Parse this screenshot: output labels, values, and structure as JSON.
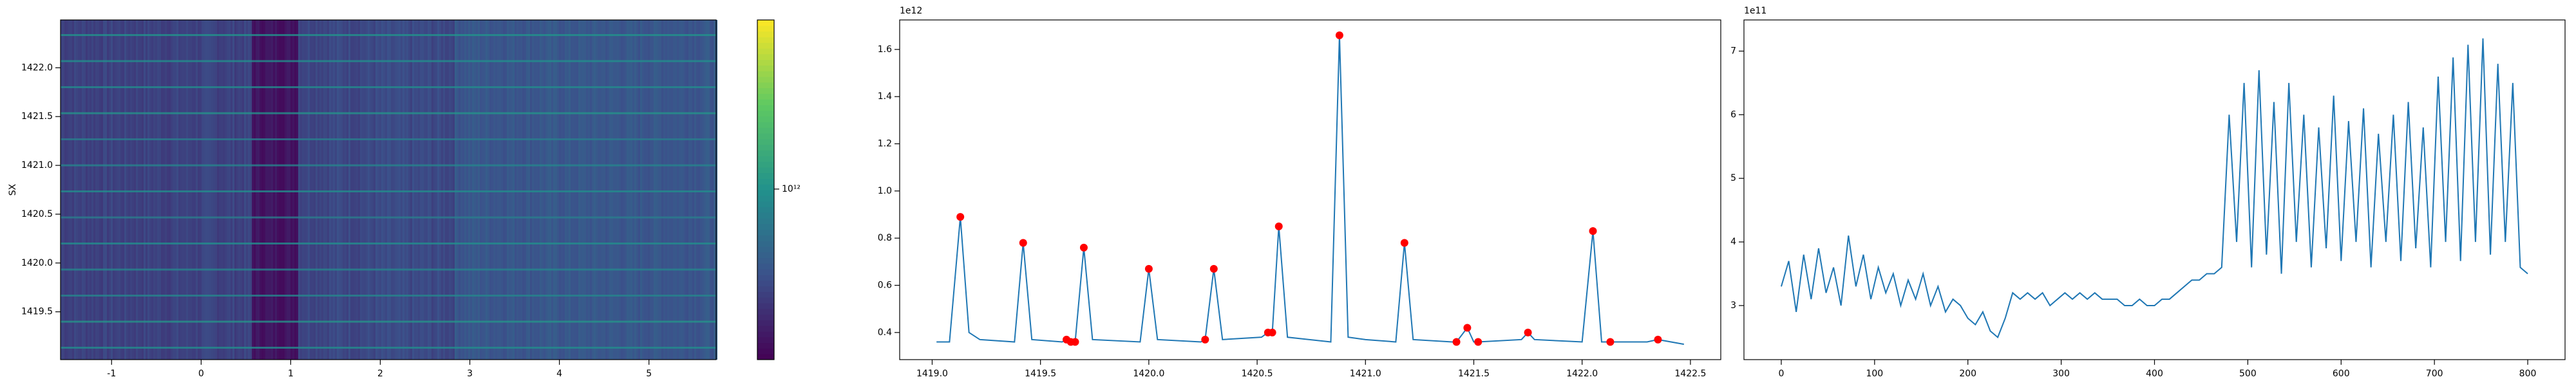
{
  "chart_data": [
    {
      "type": "heatmap",
      "ylabel": "SX",
      "xlim": [
        -1.57,
        5.75
      ],
      "xticks": [
        -1,
        0,
        1,
        2,
        3,
        4,
        5
      ],
      "ylim": [
        1419.01,
        1422.49
      ],
      "yticks": [
        1419.5,
        {
          "value": 1420,
          "label": "1420.0"
        },
        1420.5,
        {
          "value": 1421,
          "label": "1421.0"
        },
        1421.5,
        {
          "value": 1422,
          "label": "1422.0"
        }
      ],
      "colorbar": {
        "scale": "log",
        "lim": [
          300000000000,
          3300000000000
        ],
        "ticks": [
          {
            "value": 1000000000000,
            "label": "10¹²"
          }
        ]
      }
    },
    {
      "type": "line",
      "offset_label": "1e12",
      "xlim": [
        1418.85,
        1422.64
      ],
      "xticks": [
        {
          "value": 1419,
          "label": "1419.0"
        },
        1419.5,
        {
          "value": 1420,
          "label": "1420.0"
        },
        1420.5,
        {
          "value": 1421,
          "label": "1421.0"
        },
        1421.5,
        {
          "value": 1422,
          "label": "1422.0"
        },
        1422.5
      ],
      "ylim": [
        0.285,
        1.725
      ],
      "yticks": [
        0.4,
        0.6,
        0.8,
        {
          "value": 1,
          "label": "1.0"
        },
        1.2,
        1.4,
        1.6
      ],
      "series": [
        {
          "mode": "line",
          "color": "#1f77b4",
          "x": [
            1419.02,
            1419.08,
            1419.13,
            1419.17,
            1419.22,
            1419.38,
            1419.42,
            1419.46,
            1419.6,
            1419.62,
            1419.64,
            1419.66,
            1419.7,
            1419.74,
            1419.96,
            1420.0,
            1420.04,
            1420.24,
            1420.26,
            1420.3,
            1420.34,
            1420.52,
            1420.55,
            1420.57,
            1420.6,
            1420.64,
            1420.84,
            1420.88,
            1420.92,
            1421.0,
            1421.14,
            1421.18,
            1421.22,
            1421.4,
            1421.42,
            1421.47,
            1421.5,
            1421.52,
            1421.72,
            1421.75,
            1421.78,
            1422.0,
            1422.05,
            1422.09,
            1422.13,
            1422.3,
            1422.35,
            1422.47
          ],
          "values": [
            0.36,
            0.36,
            0.89,
            0.4,
            0.37,
            0.36,
            0.78,
            0.37,
            0.36,
            0.37,
            0.36,
            0.36,
            0.76,
            0.37,
            0.36,
            0.67,
            0.37,
            0.36,
            0.37,
            0.67,
            0.37,
            0.38,
            0.4,
            0.4,
            0.85,
            0.38,
            0.36,
            1.66,
            0.38,
            0.37,
            0.36,
            0.78,
            0.37,
            0.36,
            0.36,
            0.42,
            0.36,
            0.36,
            0.37,
            0.4,
            0.37,
            0.36,
            0.83,
            0.36,
            0.36,
            0.36,
            0.37,
            0.35
          ]
        },
        {
          "mode": "markers",
          "color": "#ff0000",
          "x": [
            1419.13,
            1419.42,
            1419.62,
            1419.64,
            1419.66,
            1419.7,
            1420.0,
            1420.26,
            1420.3,
            1420.55,
            1420.57,
            1420.6,
            1420.88,
            1421.18,
            1421.42,
            1421.47,
            1421.52,
            1421.75,
            1422.05,
            1422.13,
            1422.35
          ],
          "values": [
            0.89,
            0.78,
            0.37,
            0.36,
            0.36,
            0.76,
            0.67,
            0.37,
            0.67,
            0.4,
            0.4,
            0.85,
            1.66,
            0.78,
            0.36,
            0.42,
            0.36,
            0.4,
            0.83,
            0.36,
            0.37
          ]
        }
      ]
    },
    {
      "type": "line",
      "offset_label": "1e11",
      "xlim": [
        -40,
        840
      ],
      "xticks": [
        0,
        100,
        200,
        300,
        400,
        500,
        600,
        700,
        800
      ],
      "ylim": [
        2.15,
        7.49
      ],
      "yticks": [
        3,
        4,
        5,
        6,
        7
      ],
      "series": [
        {
          "mode": "line",
          "color": "#1f77b4",
          "x": [
            0,
            8,
            16,
            24,
            32,
            40,
            48,
            56,
            64,
            72,
            80,
            88,
            96,
            104,
            112,
            120,
            128,
            136,
            144,
            152,
            160,
            168,
            176,
            184,
            192,
            200,
            208,
            216,
            224,
            232,
            240,
            248,
            256,
            264,
            272,
            280,
            288,
            296,
            304,
            312,
            320,
            328,
            336,
            344,
            352,
            360,
            368,
            376,
            384,
            392,
            400,
            408,
            416,
            424,
            432,
            440,
            448,
            456,
            464,
            472,
            480,
            488,
            496,
            504,
            512,
            520,
            528,
            536,
            544,
            552,
            560,
            568,
            576,
            584,
            592,
            600,
            608,
            616,
            624,
            632,
            640,
            648,
            656,
            664,
            672,
            680,
            688,
            696,
            704,
            712,
            720,
            728,
            736,
            744,
            752,
            760,
            768,
            776,
            784,
            792,
            800
          ],
          "values": [
            3.3,
            3.7,
            2.9,
            3.8,
            3.1,
            3.9,
            3.2,
            3.6,
            3.0,
            4.1,
            3.3,
            3.8,
            3.1,
            3.6,
            3.2,
            3.5,
            3.0,
            3.4,
            3.1,
            3.5,
            3.0,
            3.3,
            2.9,
            3.1,
            3.0,
            2.8,
            2.7,
            2.9,
            2.6,
            2.5,
            2.8,
            3.2,
            3.1,
            3.2,
            3.1,
            3.2,
            3.0,
            3.1,
            3.2,
            3.1,
            3.2,
            3.1,
            3.2,
            3.1,
            3.1,
            3.1,
            3.0,
            3.0,
            3.1,
            3.0,
            3.0,
            3.1,
            3.1,
            3.2,
            3.3,
            3.4,
            3.4,
            3.5,
            3.5,
            3.6,
            6.0,
            4.0,
            6.5,
            3.6,
            6.7,
            3.8,
            6.2,
            3.5,
            6.5,
            4.0,
            6.0,
            3.6,
            5.8,
            3.9,
            6.3,
            3.7,
            5.9,
            4.0,
            6.1,
            3.6,
            5.7,
            4.0,
            6.0,
            3.7,
            6.2,
            3.9,
            5.8,
            3.6,
            6.6,
            4.0,
            6.9,
            3.7,
            7.1,
            4.0,
            7.2,
            3.8,
            6.8,
            4.0,
            6.5,
            3.6,
            3.5
          ]
        }
      ]
    }
  ]
}
